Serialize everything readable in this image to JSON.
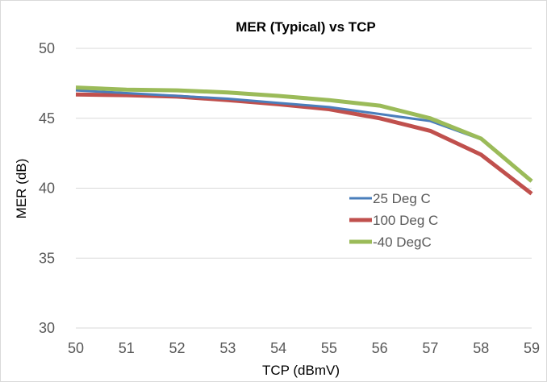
{
  "chart_data": {
    "type": "line",
    "title": "MER (Typical) vs TCP",
    "xlabel": "TCP (dBmV)",
    "ylabel": "MER (dB)",
    "x": [
      50,
      51,
      52,
      53,
      54,
      55,
      56,
      57,
      58,
      59
    ],
    "xlim": [
      50,
      59
    ],
    "ylim": [
      30,
      50
    ],
    "yticks": [
      30,
      35,
      40,
      45,
      50
    ],
    "grid": true,
    "legend_position": "right-middle",
    "series": [
      {
        "name": "25 Deg C",
        "color": "#4a7ebb",
        "values": [
          47.0,
          46.8,
          46.6,
          46.4,
          46.1,
          45.8,
          45.3,
          44.8,
          43.5,
          40.5
        ]
      },
      {
        "name": "100 Deg C",
        "color": "#c0504d",
        "values": [
          46.7,
          46.65,
          46.55,
          46.3,
          46.0,
          45.65,
          45.0,
          44.1,
          42.4,
          39.6
        ]
      },
      {
        "name": "-40 DegC",
        "color": "#9bbb59",
        "values": [
          47.2,
          47.05,
          47.0,
          46.85,
          46.6,
          46.3,
          45.9,
          45.0,
          43.55,
          40.5
        ]
      }
    ]
  }
}
